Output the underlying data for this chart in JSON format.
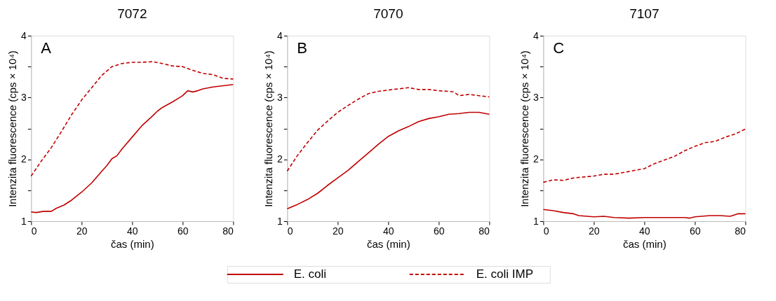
{
  "chart_data": [
    {
      "type": "line",
      "title": "7072",
      "xlabel": "čas (min)",
      "ylabel": "Intenzita fluorescence (cps × 10⁴)",
      "annotations": [
        "A"
      ],
      "xlim": [
        0,
        80
      ],
      "xticks": [
        0,
        20,
        40,
        60,
        80
      ],
      "ylim": [
        1,
        4
      ],
      "yticks": [
        1,
        {
          "value": 1.5,
          "label": null
        },
        2,
        {
          "value": 2.5,
          "label": null
        },
        3,
        {
          "value": 3.5,
          "label": null
        },
        4
      ],
      "grid": false,
      "legend": "bottom",
      "marker": "none",
      "series": [
        {
          "name": "E. coli",
          "color": "#c00000",
          "line_style": "solid",
          "x": [
            0,
            2,
            5,
            8,
            10,
            13,
            16,
            20,
            24,
            28,
            30,
            32,
            34,
            36,
            40,
            44,
            48,
            50,
            52,
            56,
            60,
            62,
            64,
            66,
            68,
            72,
            76,
            80
          ],
          "values": [
            1.15,
            1.14,
            1.16,
            1.16,
            1.21,
            1.26,
            1.34,
            1.47,
            1.62,
            1.81,
            1.9,
            2.01,
            2.06,
            2.17,
            2.36,
            2.55,
            2.7,
            2.78,
            2.84,
            2.93,
            3.03,
            3.11,
            3.09,
            3.11,
            3.14,
            3.17,
            3.19,
            3.21
          ]
        },
        {
          "name": "E. coli IMP",
          "color": "#c00000",
          "line_style": "dashed",
          "x": [
            0,
            4,
            8,
            12,
            16,
            20,
            24,
            28,
            32,
            36,
            40,
            44,
            48,
            52,
            56,
            60,
            64,
            68,
            72,
            76,
            80
          ],
          "values": [
            1.73,
            1.97,
            2.19,
            2.45,
            2.72,
            2.96,
            3.16,
            3.36,
            3.5,
            3.55,
            3.57,
            3.57,
            3.58,
            3.55,
            3.51,
            3.5,
            3.44,
            3.39,
            3.37,
            3.31,
            3.3
          ]
        }
      ]
    },
    {
      "type": "line",
      "title": "7070",
      "xlabel": "čas (min)",
      "ylabel": "Intenzita fluorescence (cps × 10⁴)",
      "annotations": [
        "B"
      ],
      "xlim": [
        0,
        80
      ],
      "xticks": [
        0,
        20,
        40,
        60,
        80
      ],
      "ylim": [
        1,
        4
      ],
      "yticks": [
        1,
        {
          "value": 1.5,
          "label": null
        },
        2,
        {
          "value": 2.5,
          "label": null
        },
        3,
        {
          "value": 3.5,
          "label": null
        },
        4
      ],
      "grid": false,
      "legend": "bottom",
      "marker": "none",
      "series": [
        {
          "name": "E. coli",
          "color": "#c00000",
          "line_style": "solid",
          "x": [
            0,
            4,
            8,
            12,
            16,
            20,
            24,
            28,
            32,
            36,
            40,
            44,
            48,
            52,
            56,
            60,
            64,
            68,
            72,
            76,
            80
          ],
          "values": [
            1.2,
            1.27,
            1.35,
            1.45,
            1.58,
            1.7,
            1.82,
            1.96,
            2.1,
            2.24,
            2.37,
            2.46,
            2.53,
            2.61,
            2.66,
            2.69,
            2.73,
            2.74,
            2.76,
            2.76,
            2.73
          ]
        },
        {
          "name": "E. coli IMP",
          "color": "#c00000",
          "line_style": "dashed",
          "x": [
            0,
            4,
            8,
            12,
            16,
            20,
            24,
            28,
            32,
            36,
            40,
            44,
            48,
            52,
            56,
            60,
            64,
            66,
            68,
            72,
            76,
            80
          ],
          "values": [
            1.81,
            2.06,
            2.27,
            2.47,
            2.62,
            2.76,
            2.87,
            2.97,
            3.06,
            3.1,
            3.12,
            3.14,
            3.16,
            3.13,
            3.13,
            3.11,
            3.1,
            3.09,
            3.03,
            3.05,
            3.03,
            3.01
          ]
        }
      ]
    },
    {
      "type": "line",
      "title": "7107",
      "xlabel": "čas (min)",
      "ylabel": "Intenzita fluorescence (cps × 10⁴)",
      "annotations": [
        "C"
      ],
      "xlim": [
        0,
        80
      ],
      "xticks": [
        0,
        20,
        40,
        60,
        80
      ],
      "ylim": [
        1,
        4
      ],
      "yticks": [
        1,
        {
          "value": 1.5,
          "label": null
        },
        2,
        {
          "value": 2.5,
          "label": null
        },
        3,
        {
          "value": 3.5,
          "label": null
        },
        4
      ],
      "grid": false,
      "legend": "bottom",
      "marker": "none",
      "series": [
        {
          "name": "E. coli",
          "color": "#c00000",
          "line_style": "solid",
          "x": [
            0,
            4,
            8,
            12,
            14,
            20,
            24,
            28,
            34,
            40,
            50,
            56,
            58,
            60,
            66,
            70,
            74,
            77,
            80
          ],
          "values": [
            1.19,
            1.17,
            1.14,
            1.12,
            1.09,
            1.07,
            1.08,
            1.06,
            1.05,
            1.06,
            1.06,
            1.06,
            1.05,
            1.07,
            1.09,
            1.09,
            1.08,
            1.12,
            1.12
          ]
        },
        {
          "name": "E. coli IMP",
          "color": "#c00000",
          "line_style": "dashed",
          "x": [
            0,
            4,
            8,
            12,
            20,
            24,
            28,
            32,
            36,
            40,
            44,
            48,
            52,
            56,
            60,
            64,
            68,
            72,
            76,
            80
          ],
          "values": [
            1.63,
            1.67,
            1.66,
            1.7,
            1.73,
            1.76,
            1.76,
            1.79,
            1.82,
            1.85,
            1.93,
            1.99,
            2.05,
            2.14,
            2.21,
            2.27,
            2.29,
            2.36,
            2.41,
            2.49
          ]
        }
      ]
    }
  ]
}
